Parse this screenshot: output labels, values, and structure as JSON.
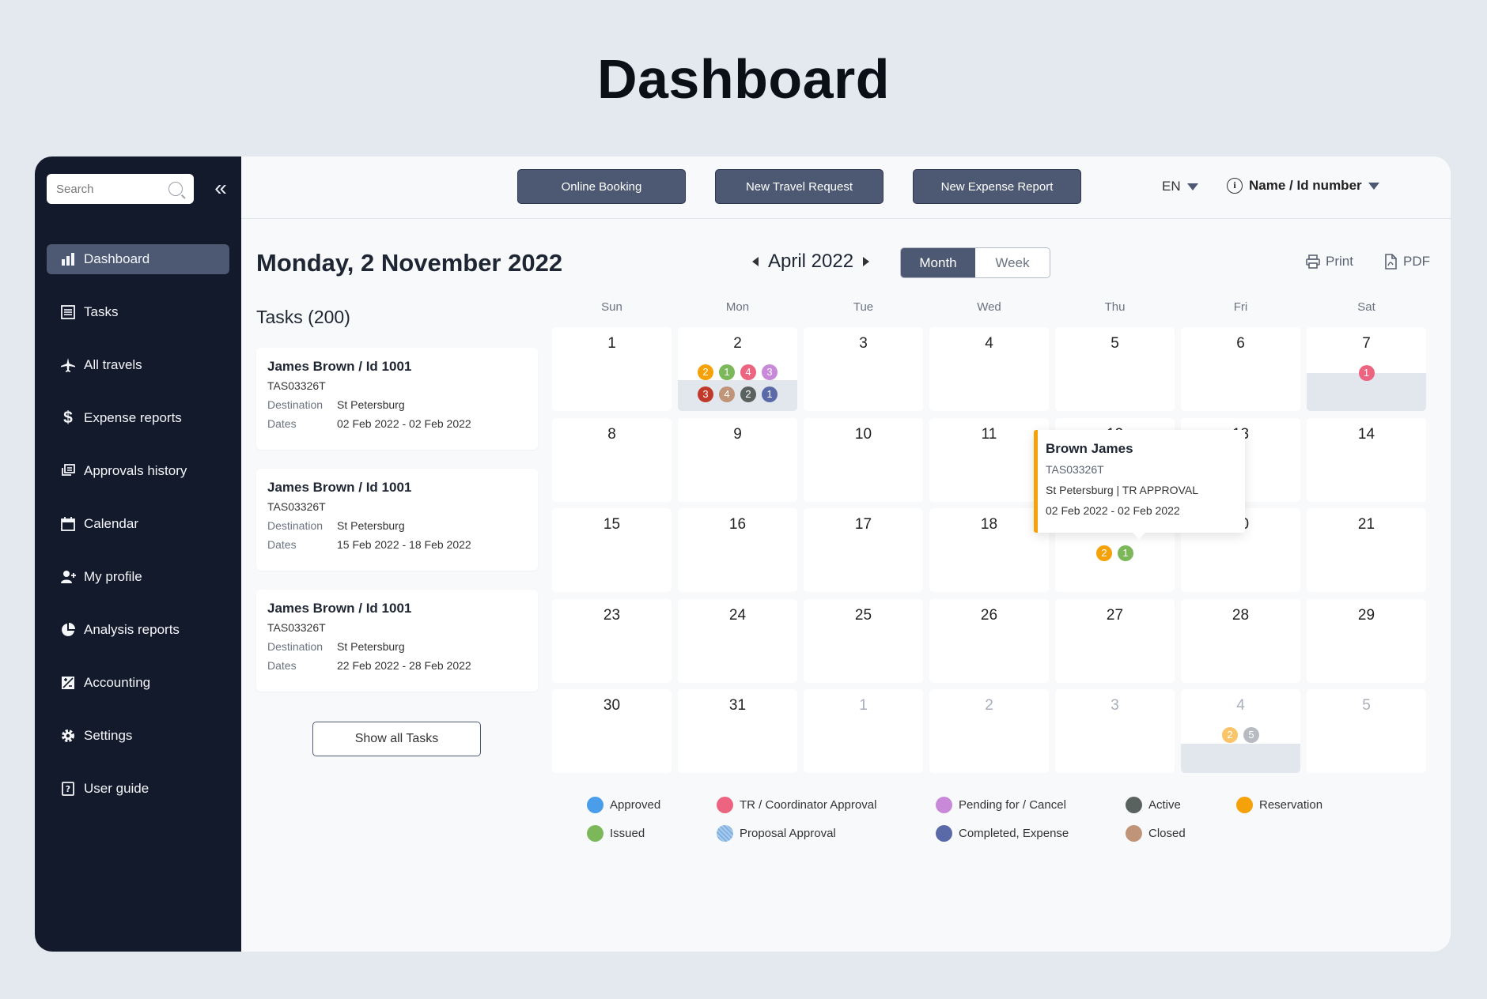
{
  "page_title": "Dashboard",
  "search": {
    "placeholder": "Search"
  },
  "sidebar": {
    "items": [
      {
        "label": "Dashboard",
        "icon": "bar-chart-icon"
      },
      {
        "label": "Tasks",
        "icon": "list-icon"
      },
      {
        "label": "All travels",
        "icon": "airplane-icon"
      },
      {
        "label": "Expense reports",
        "icon": "dollar-icon"
      },
      {
        "label": "Approvals history",
        "icon": "history-icon"
      },
      {
        "label": "Calendar",
        "icon": "calendar-icon"
      },
      {
        "label": "My profile",
        "icon": "user-add-icon"
      },
      {
        "label": "Analysis reports",
        "icon": "pie-chart-icon"
      },
      {
        "label": "Accounting",
        "icon": "accounting-icon"
      },
      {
        "label": "Settings",
        "icon": "gear-icon"
      },
      {
        "label": "User guide",
        "icon": "help-icon"
      }
    ]
  },
  "topbar": {
    "online_booking": "Online Booking",
    "new_travel_request": "New Travel Request",
    "new_expense_report": "New Expense Report",
    "language": "EN",
    "user_select": "Name / Id number"
  },
  "main": {
    "date_title": "Monday, 2 November 2022",
    "month_label": "April 2022",
    "view_month": "Month",
    "view_week": "Week",
    "print": "Print",
    "pdf": "PDF",
    "tasks_title": "Tasks (200)",
    "destination_label": "Destination",
    "dates_label": "Dates",
    "show_all": "Show all Tasks"
  },
  "tasks": [
    {
      "name": "James Brown / Id 1001",
      "code": "TAS03326T",
      "destination": "St Petersburg",
      "dates": "02 Feb 2022 - 02 Feb 2022"
    },
    {
      "name": "James Brown / Id 1001",
      "code": "TAS03326T",
      "destination": "St Petersburg",
      "dates": "15 Feb 2022 - 18 Feb 2022"
    },
    {
      "name": "James Brown / Id 1001",
      "code": "TAS03326T",
      "destination": "St Petersburg",
      "dates": "22 Feb 2022 - 28 Feb 2022"
    }
  ],
  "calendar": {
    "weekdays": [
      "Sun",
      "Mon",
      "Tue",
      "Wed",
      "Thu",
      "Fri",
      "Sat"
    ],
    "weeks": [
      [
        "1",
        "2",
        "3",
        "4",
        "5",
        "6",
        "7"
      ],
      [
        "8",
        "9",
        "10",
        "11",
        "12",
        "13",
        "14"
      ],
      [
        "15",
        "16",
        "17",
        "18",
        "19",
        "20",
        "21"
      ],
      [
        "23",
        "24",
        "25",
        "26",
        "27",
        "28",
        "29"
      ],
      [
        "30",
        "31",
        "1",
        "2",
        "3",
        "4",
        "5"
      ]
    ],
    "colors": {
      "approved": "#4a9de8",
      "issued": "#7cb85a",
      "tr_coordinator": "#ec6480",
      "proposal": "#7fb0e0",
      "pending": "#c88ad8",
      "completed": "#5a6aa8",
      "active": "#5a6260",
      "closed": "#c09478",
      "reservation": "#f5a10a"
    },
    "day2_row1": [
      "2",
      "1",
      "4",
      "3"
    ],
    "day2_row2": [
      "3",
      "4",
      "2",
      "1"
    ],
    "day7": [
      "1"
    ],
    "day19": [
      "2",
      "1"
    ],
    "next4": [
      "2",
      "5"
    ]
  },
  "popup": {
    "name": "Brown James",
    "code": "TAS03326T",
    "line1": "St Petersburg | TR APPROVAL",
    "line2": "02 Feb 2022 - 02 Feb 2022"
  },
  "legend": [
    {
      "label": "Approved",
      "color": "#4a9de8"
    },
    {
      "label": "TR / Coordinator Approval",
      "color": "#ec6480"
    },
    {
      "label": "Pending for / Cancel",
      "color": "#c88ad8"
    },
    {
      "label": "Active",
      "color": "#5a6260"
    },
    {
      "label": "Reservation",
      "color": "#f5a10a"
    },
    {
      "label": "Issued",
      "color": "#7cb85a"
    },
    {
      "label": "Proposal Approval",
      "color": "#7fb0e0"
    },
    {
      "label": "Completed, Expense",
      "color": "#5a6aa8"
    },
    {
      "label": "Closed",
      "color": "#c09478"
    }
  ]
}
